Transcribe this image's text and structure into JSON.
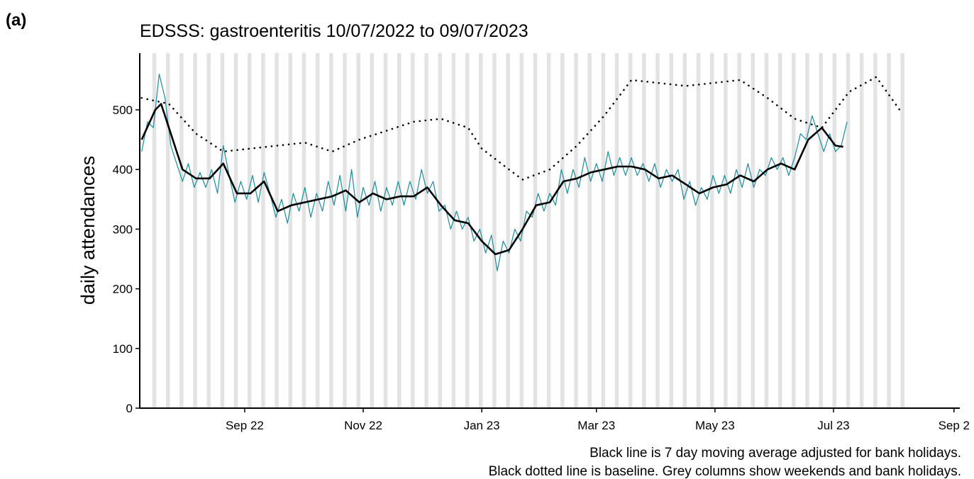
{
  "chart_data": {
    "type": "line",
    "panel_label": "(a)",
    "title": "EDSSS: gastroenteritis 10/07/2022 to 09/07/2023",
    "ylabel": "daily attendances",
    "annotations": [
      "Black line is 7 day moving average adjusted for bank holidays.",
      "Black dotted line is baseline. Grey columns show weekends and bank holidays."
    ],
    "xlim": [
      -1,
      421
    ],
    "xticks": [
      {
        "value": 53,
        "label": "Sep 22"
      },
      {
        "value": 114,
        "label": "Nov 22"
      },
      {
        "value": 175,
        "label": "Jan 23"
      },
      {
        "value": 234,
        "label": "Mar 23"
      },
      {
        "value": 295,
        "label": "May 23"
      },
      {
        "value": 356,
        "label": "Jul 23"
      },
      {
        "value": 418,
        "label": "Sep 2"
      }
    ],
    "ylim": [
      0,
      595
    ],
    "yticks": [
      0,
      100,
      200,
      300,
      400,
      500
    ],
    "series": [
      {
        "color": "#1f8b9b",
        "style": "solid",
        "x": [
          0,
          3,
          6,
          9,
          12,
          15,
          18,
          21,
          24,
          27,
          30,
          33,
          36,
          39,
          42,
          45,
          48,
          51,
          54,
          57,
          60,
          63,
          66,
          69,
          72,
          75,
          78,
          81,
          84,
          87,
          90,
          93,
          96,
          99,
          102,
          105,
          108,
          111,
          114,
          117,
          120,
          123,
          126,
          129,
          132,
          135,
          138,
          141,
          144,
          147,
          150,
          153,
          156,
          159,
          162,
          165,
          168,
          171,
          174,
          177,
          180,
          183,
          186,
          189,
          192,
          195,
          198,
          201,
          204,
          207,
          210,
          213,
          216,
          219,
          222,
          225,
          228,
          231,
          234,
          237,
          240,
          243,
          246,
          249,
          252,
          255,
          258,
          261,
          264,
          267,
          270,
          273,
          276,
          279,
          282,
          285,
          288,
          291,
          294,
          297,
          300,
          303,
          306,
          309,
          312,
          315,
          318,
          321,
          324,
          327,
          330,
          333,
          336,
          339,
          342,
          345,
          348,
          351,
          354,
          357,
          360,
          363
        ],
        "values": [
          430,
          480,
          470,
          560,
          520,
          440,
          410,
          380,
          410,
          370,
          395,
          370,
          400,
          360,
          440,
          390,
          345,
          380,
          350,
          390,
          345,
          395,
          360,
          320,
          350,
          310,
          360,
          330,
          370,
          320,
          360,
          330,
          380,
          340,
          390,
          330,
          400,
          320,
          370,
          340,
          380,
          330,
          370,
          340,
          380,
          340,
          380,
          350,
          400,
          360,
          380,
          330,
          340,
          300,
          330,
          300,
          320,
          280,
          300,
          260,
          290,
          230,
          280,
          260,
          300,
          280,
          330,
          320,
          360,
          330,
          360,
          340,
          400,
          360,
          400,
          370,
          420,
          380,
          410,
          380,
          430,
          390,
          420,
          390,
          420,
          390,
          410,
          380,
          410,
          370,
          400,
          380,
          400,
          350,
          380,
          340,
          370,
          350,
          390,
          360,
          390,
          360,
          400,
          370,
          410,
          370,
          400,
          390,
          420,
          400,
          420,
          390,
          420,
          460,
          450,
          490,
          460,
          430,
          460,
          430,
          440,
          480
        ]
      },
      {
        "color": "#000000",
        "style": "solid",
        "x": [
          0,
          7,
          10,
          14,
          21,
          28,
          35,
          42,
          49,
          56,
          63,
          70,
          77,
          84,
          91,
          98,
          105,
          112,
          119,
          126,
          133,
          140,
          147,
          154,
          161,
          168,
          175,
          182,
          189,
          196,
          203,
          210,
          217,
          224,
          231,
          238,
          245,
          252,
          259,
          266,
          273,
          280,
          287,
          294,
          301,
          308,
          315,
          322,
          329,
          336,
          343,
          350,
          357,
          361
        ],
        "values": [
          450,
          500,
          510,
          470,
          400,
          385,
          385,
          410,
          360,
          360,
          380,
          330,
          340,
          345,
          350,
          355,
          365,
          345,
          360,
          350,
          355,
          355,
          370,
          340,
          315,
          310,
          280,
          258,
          265,
          300,
          340,
          345,
          380,
          385,
          395,
          400,
          405,
          405,
          400,
          385,
          390,
          375,
          360,
          370,
          375,
          390,
          380,
          400,
          410,
          400,
          450,
          470,
          440,
          438
        ]
      },
      {
        "color": "#000000",
        "style": "dotted",
        "x": [
          0,
          14,
          28,
          42,
          56,
          70,
          84,
          98,
          112,
          126,
          140,
          154,
          168,
          175,
          189,
          196,
          210,
          224,
          238,
          252,
          266,
          280,
          294,
          308,
          322,
          336,
          350,
          364,
          378,
          390
        ],
        "values": [
          520,
          510,
          460,
          430,
          435,
          440,
          445,
          430,
          450,
          465,
          480,
          485,
          470,
          435,
          400,
          383,
          400,
          440,
          490,
          550,
          545,
          540,
          545,
          550,
          520,
          485,
          470,
          530,
          555,
          500
        ]
      }
    ]
  }
}
